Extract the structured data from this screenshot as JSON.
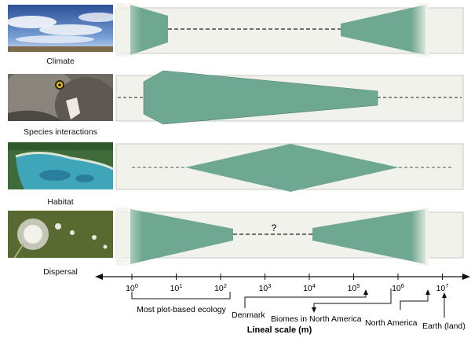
{
  "rows": [
    {
      "caption": "Climate",
      "image": "sky-clouds-photo"
    },
    {
      "caption": "Species interactions",
      "image": "owl-eating-prey-photo"
    },
    {
      "caption": "Habitat",
      "image": "aerial-coastline-photo"
    },
    {
      "caption": "Dispersal",
      "image": "dandelion-seeds-photo"
    }
  ],
  "dispersal_uncertainty_mark": "?",
  "axis": {
    "ticks": [
      {
        "base": "10",
        "exp": "0"
      },
      {
        "base": "10",
        "exp": "1"
      },
      {
        "base": "10",
        "exp": "2"
      },
      {
        "base": "10",
        "exp": "3"
      },
      {
        "base": "10",
        "exp": "4"
      },
      {
        "base": "10",
        "exp": "5"
      },
      {
        "base": "10",
        "exp": "6"
      },
      {
        "base": "10",
        "exp": "7"
      }
    ],
    "title": "Lineal scale (m)"
  },
  "annotations": {
    "plot_ecology": "Most plot-based ecology",
    "denmark": "Denmark",
    "biomes": "Biomes in North America",
    "north_america": "North America",
    "earth": "Earth (land)"
  },
  "colors": {
    "band_fill": "#f1f2ec",
    "band_stroke": "#c9cac3",
    "shape_fill": "#6fa892",
    "dash": "#222222"
  }
}
